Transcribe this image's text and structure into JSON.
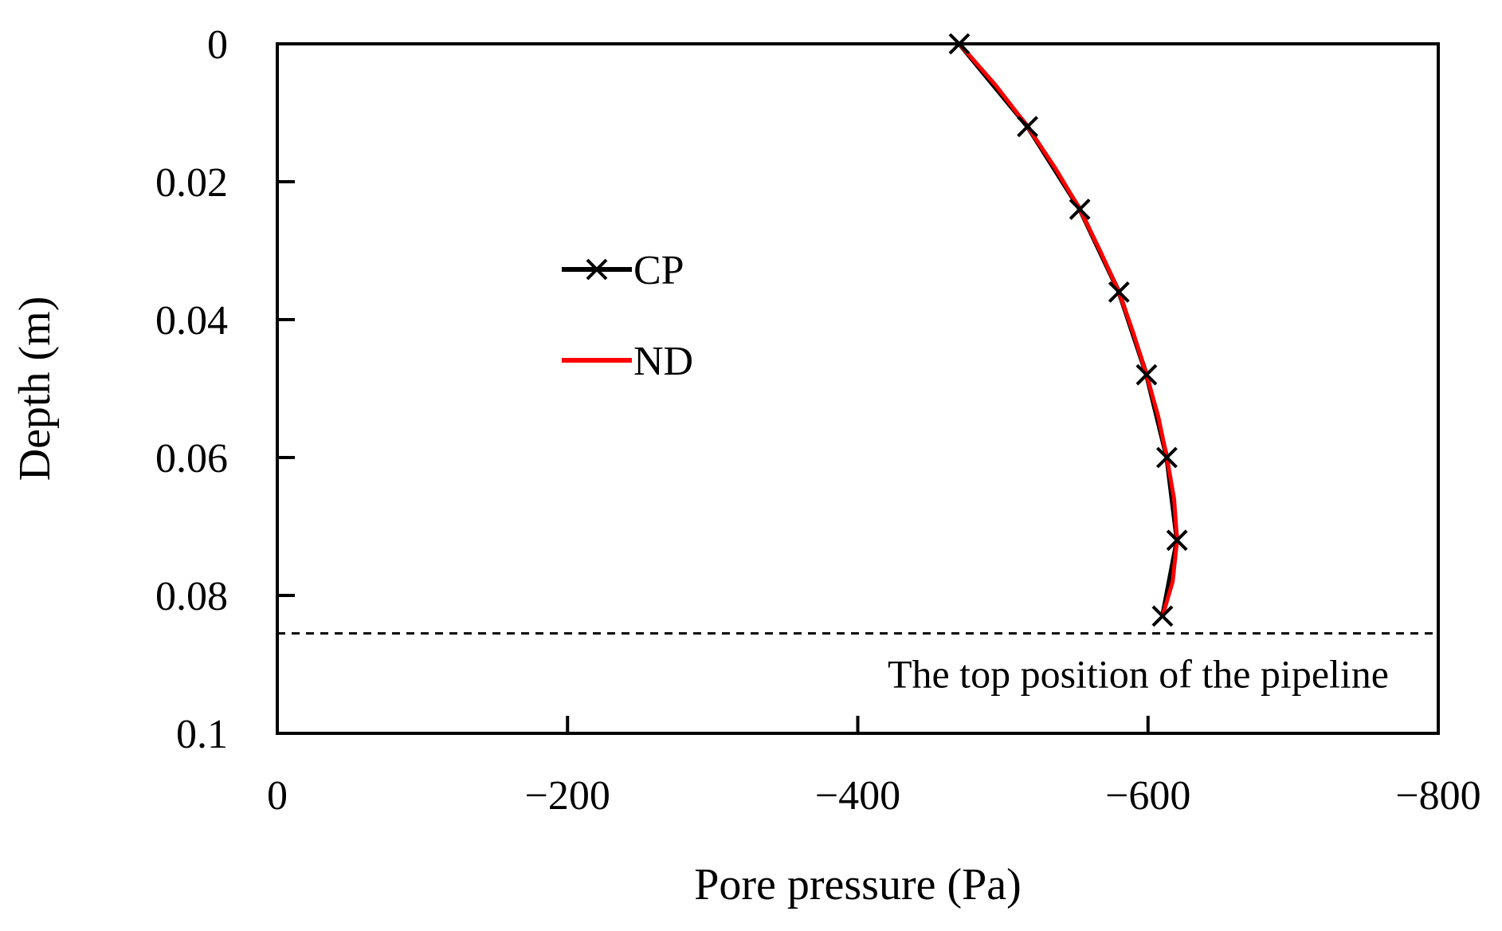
{
  "chart_data": {
    "type": "line",
    "title": "",
    "xlabel": "Pore pressure (Pa)",
    "ylabel": "Depth (m)",
    "xlim": [
      0,
      -800
    ],
    "ylim": [
      0,
      0.1
    ],
    "x_ticks": [
      0,
      -200,
      -400,
      -600,
      -800
    ],
    "x_tick_labels": [
      "0",
      "−200",
      "−400",
      "−600",
      "−800"
    ],
    "y_ticks": [
      0,
      0.02,
      0.04,
      0.06,
      0.08,
      0.1
    ],
    "y_tick_labels": [
      "0",
      "0.02",
      "0.04",
      "0.06",
      "0.08",
      "0.1"
    ],
    "grid": false,
    "legend_position": "center-left",
    "series": [
      {
        "name": "CP",
        "color": "#000000",
        "marker": "x",
        "points": [
          {
            "x": -470,
            "y": 0.0
          },
          {
            "x": -517,
            "y": 0.012
          },
          {
            "x": -553,
            "y": 0.024
          },
          {
            "x": -580,
            "y": 0.036
          },
          {
            "x": -599,
            "y": 0.048
          },
          {
            "x": -613,
            "y": 0.06
          },
          {
            "x": -620,
            "y": 0.072
          },
          {
            "x": -610,
            "y": 0.083
          }
        ]
      },
      {
        "name": "ND",
        "color": "#ff0000",
        "marker": "none",
        "points": [
          {
            "x": -470,
            "y": 0.0
          },
          {
            "x": -495,
            "y": 0.006
          },
          {
            "x": -517,
            "y": 0.012
          },
          {
            "x": -536,
            "y": 0.018
          },
          {
            "x": -553,
            "y": 0.024
          },
          {
            "x": -567,
            "y": 0.03
          },
          {
            "x": -580,
            "y": 0.036
          },
          {
            "x": -590,
            "y": 0.042
          },
          {
            "x": -599,
            "y": 0.048
          },
          {
            "x": -607,
            "y": 0.054
          },
          {
            "x": -613,
            "y": 0.06
          },
          {
            "x": -618,
            "y": 0.066
          },
          {
            "x": -620,
            "y": 0.072
          },
          {
            "x": -617,
            "y": 0.078
          },
          {
            "x": -610,
            "y": 0.083
          }
        ]
      }
    ],
    "reference_line": {
      "y": 0.0855,
      "style": "dashed",
      "color": "#000000",
      "label": "The top position of the pipeline"
    }
  }
}
